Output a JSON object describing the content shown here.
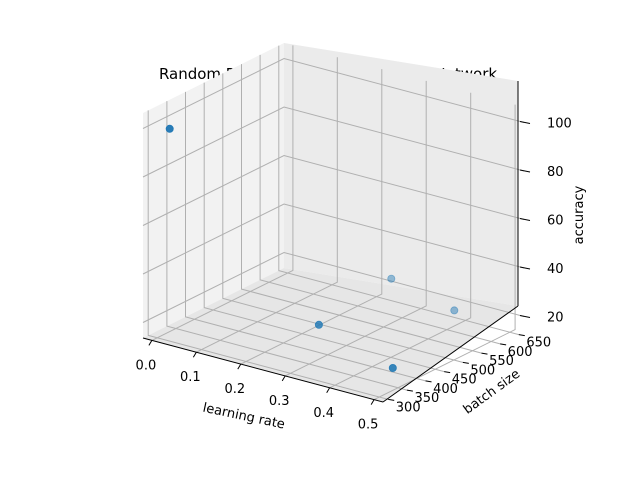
{
  "chart_data": {
    "type": "scatter",
    "title": "Random Results From Convolutional Network",
    "xlabel": "learning rate",
    "ylabel": "batch size",
    "zlabel": "accuracy",
    "x_ticks": [
      "0.0",
      "0.1",
      "0.2",
      "0.3",
      "0.4",
      "0.5"
    ],
    "y_ticks": [
      "300",
      "350",
      "400",
      "450",
      "500",
      "550",
      "600",
      "650"
    ],
    "z_ticks": [
      "20",
      "40",
      "60",
      "80",
      "100"
    ],
    "xlim": [
      0,
      0.5
    ],
    "ylim": [
      300,
      650
    ],
    "zlim": [
      20,
      100
    ],
    "grid": true,
    "marker_color": "#1f77b4",
    "points": [
      {
        "x": 0.02,
        "y": 310,
        "z": 100
      },
      {
        "x": 0.48,
        "y": 360,
        "z": 20
      },
      {
        "x": 0.28,
        "y": 400,
        "z": 25
      },
      {
        "x": 0.25,
        "y": 630,
        "z": 25
      },
      {
        "x": 0.4,
        "y": 620,
        "z": 20
      }
    ]
  }
}
